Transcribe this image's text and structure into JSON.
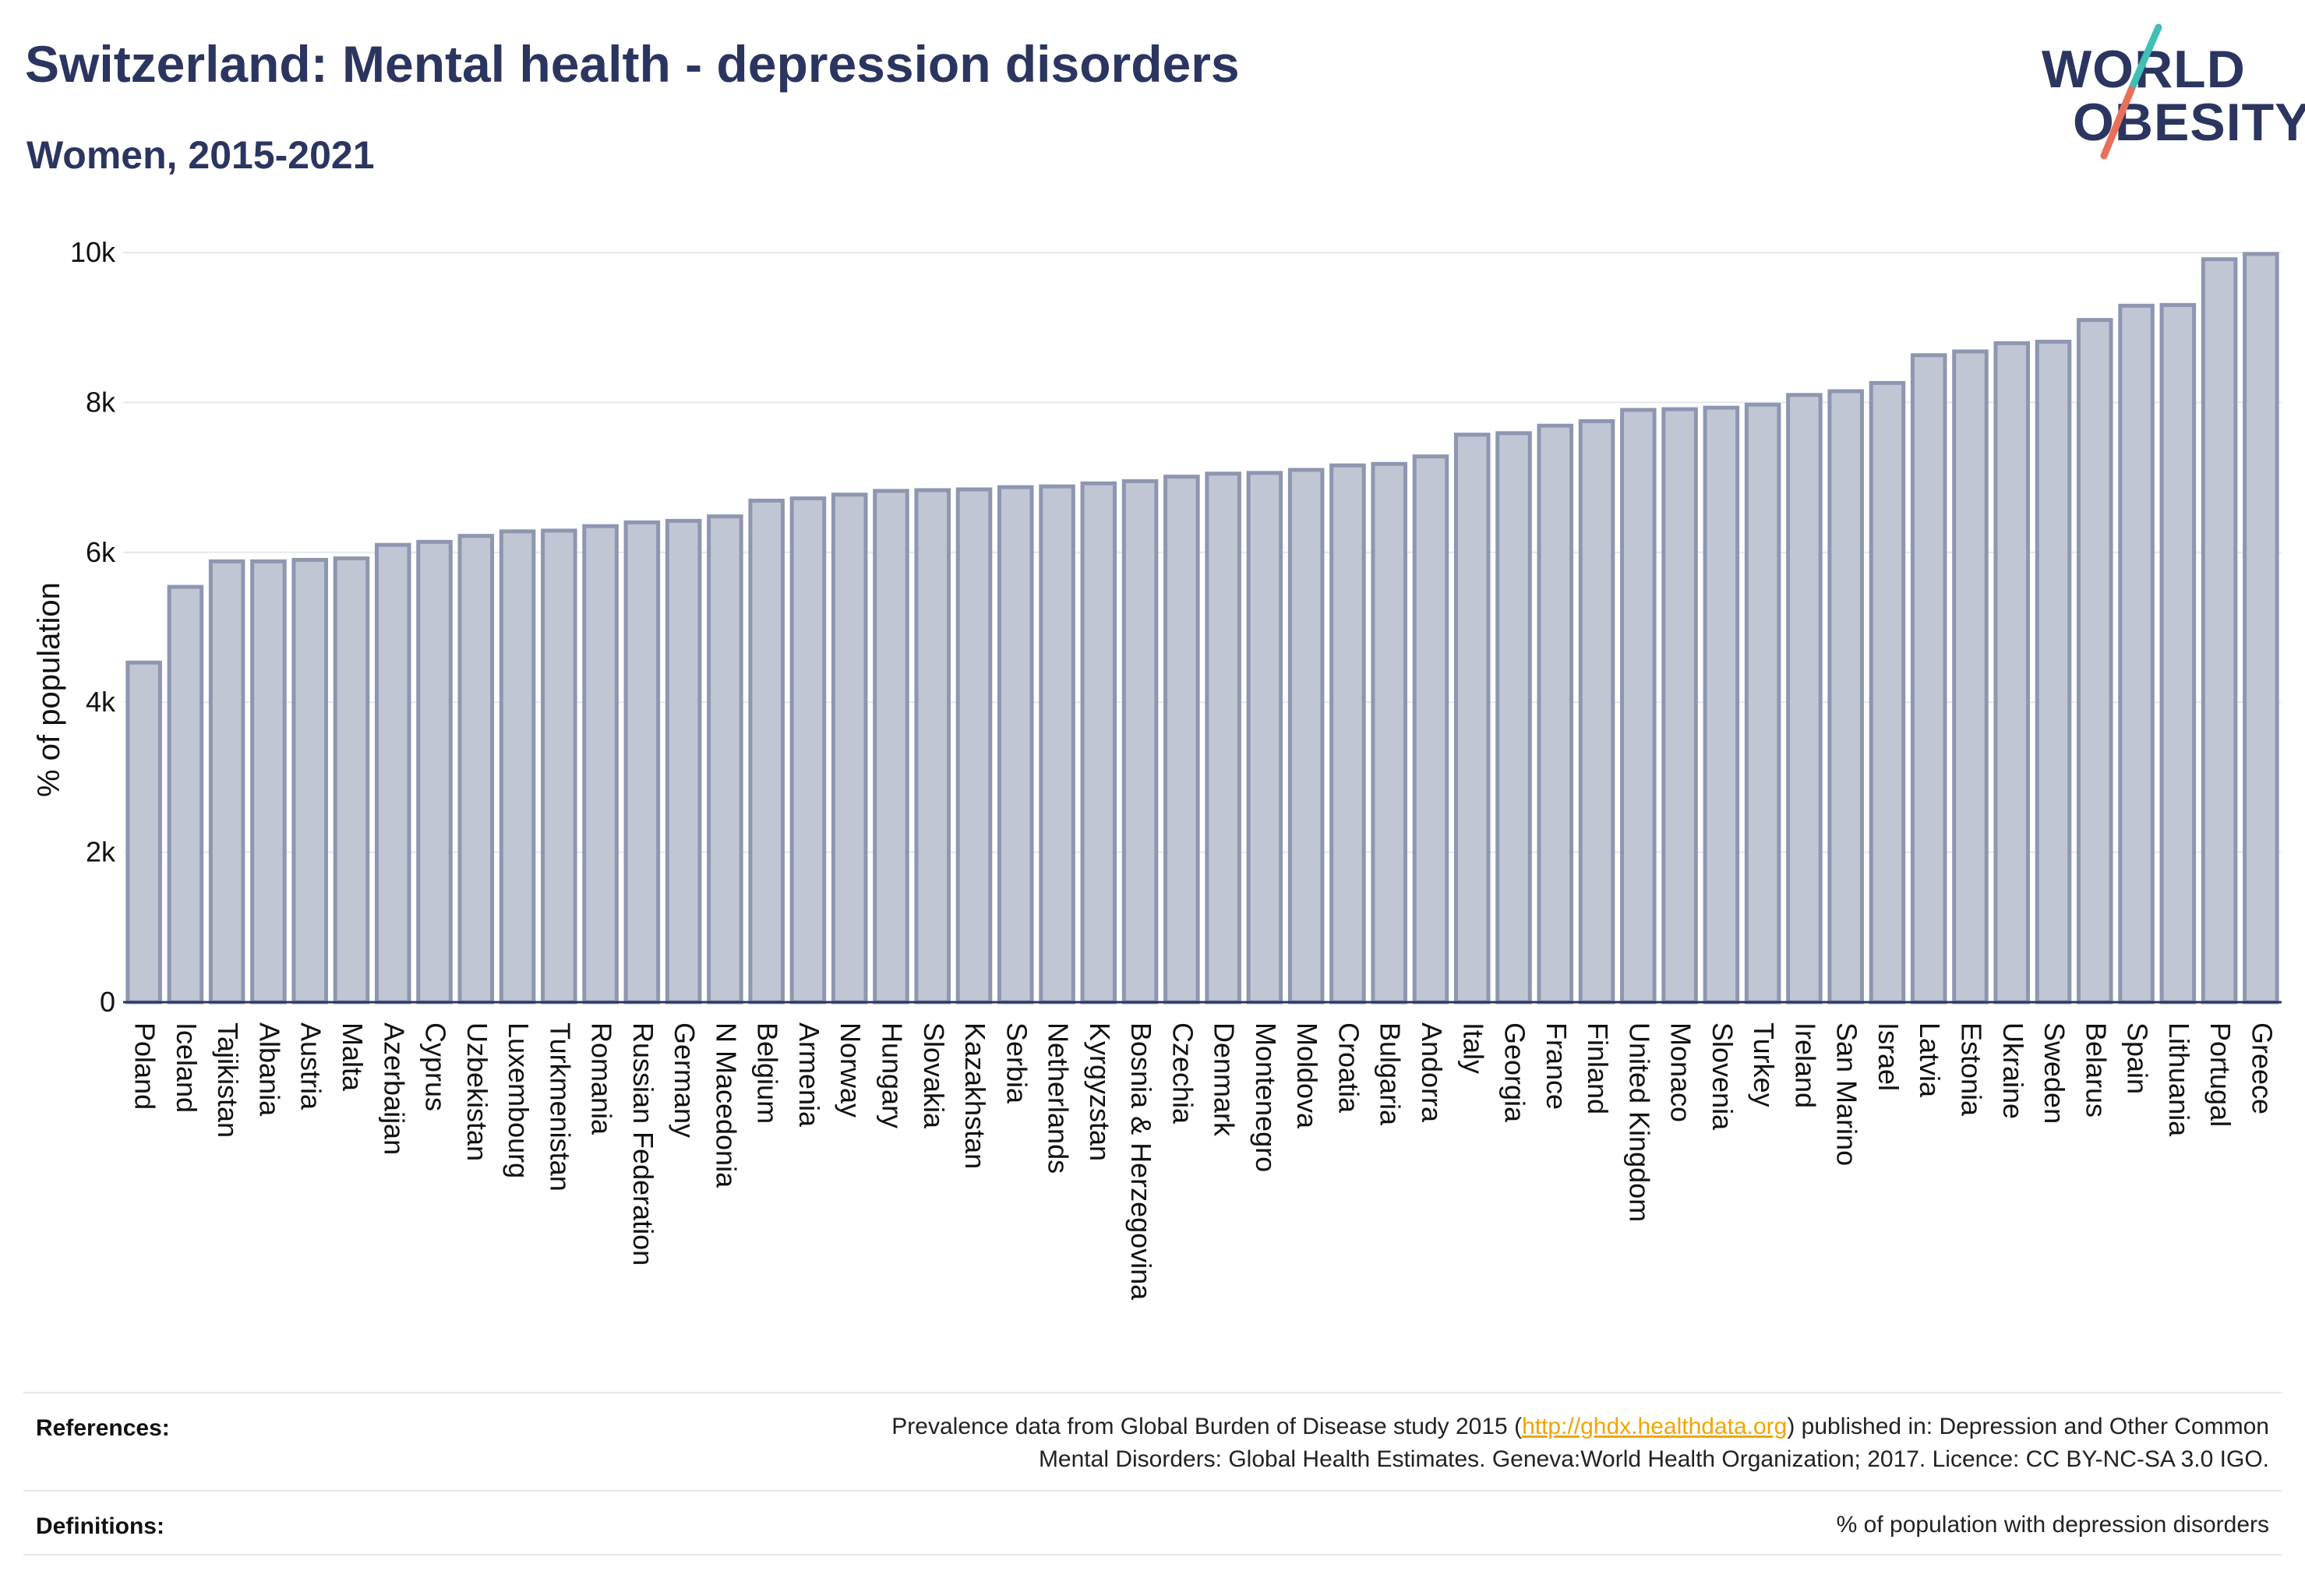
{
  "header": {
    "title": "Switzerland: Mental health - depression disorders",
    "subtitle": "Women, 2015-2021"
  },
  "logo": {
    "line1": "WORLD",
    "line2": "OBESITY"
  },
  "colors": {
    "title": "#2b3560",
    "bar_fill": "#c1c6d4",
    "bar_stroke": "#8e96b0",
    "grid": "#e6e8ef",
    "link": "#f0a500",
    "logo_teal": "#3fbfb5",
    "logo_coral": "#e8705a"
  },
  "chart_data": {
    "type": "bar",
    "title": "Switzerland: Mental health - depression disorders",
    "subtitle": "Women, 2015-2021",
    "ylabel": "% of population",
    "xlabel": "",
    "ylim": [
      0,
      10000
    ],
    "yticks": [
      0,
      2000,
      4000,
      6000,
      8000,
      10000
    ],
    "ytick_labels": [
      "0",
      "2k",
      "4k",
      "6k",
      "8k",
      "10k"
    ],
    "grid": true,
    "categories": [
      "Poland",
      "Iceland",
      "Tajikistan",
      "Albania",
      "Austria",
      "Malta",
      "Azerbaijan",
      "Cyprus",
      "Uzbekistan",
      "Luxembourg",
      "Turkmenistan",
      "Romania",
      "Russian Federation",
      "Germany",
      "N Macedonia",
      "Belgium",
      "Armenia",
      "Norway",
      "Hungary",
      "Slovakia",
      "Kazakhstan",
      "Serbia",
      "Netherlands",
      "Kyrgyzstan",
      "Bosnia & Herzegovina",
      "Czechia",
      "Denmark",
      "Montenegro",
      "Moldova",
      "Croatia",
      "Bulgaria",
      "Andorra",
      "Italy",
      "Georgia",
      "France",
      "Finland",
      "United Kingdom",
      "Monaco",
      "Slovenia",
      "Turkey",
      "Ireland",
      "San Marino",
      "Israel",
      "Latvia",
      "Estonia",
      "Ukraine",
      "Sweden",
      "Belarus",
      "Spain",
      "Lithuania",
      "Portugal",
      "Greece"
    ],
    "values": [
      4530,
      5540,
      5880,
      5880,
      5900,
      5920,
      6100,
      6140,
      6220,
      6280,
      6290,
      6350,
      6400,
      6420,
      6480,
      6690,
      6720,
      6770,
      6820,
      6830,
      6840,
      6870,
      6880,
      6920,
      6950,
      7010,
      7050,
      7060,
      7100,
      7160,
      7180,
      7280,
      7570,
      7590,
      7690,
      7750,
      7900,
      7910,
      7930,
      7970,
      8100,
      8150,
      8260,
      8630,
      8680,
      8790,
      8810,
      9100,
      9290,
      9300,
      9910,
      9980
    ]
  },
  "footer": {
    "references_label": "References:",
    "references_pre": "Prevalence data from Global Burden of Disease study 2015 (",
    "references_link": "http://ghdx.healthdata.org",
    "references_post": ") published in: Depression and Other Common",
    "references_line2": "Mental Disorders: Global Health Estimates. Geneva:World Health Organization; 2017. Licence: CC BY-NC-SA 3.0 IGO.",
    "definitions_label": "Definitions:",
    "definitions_text": "% of population with depression disorders"
  }
}
